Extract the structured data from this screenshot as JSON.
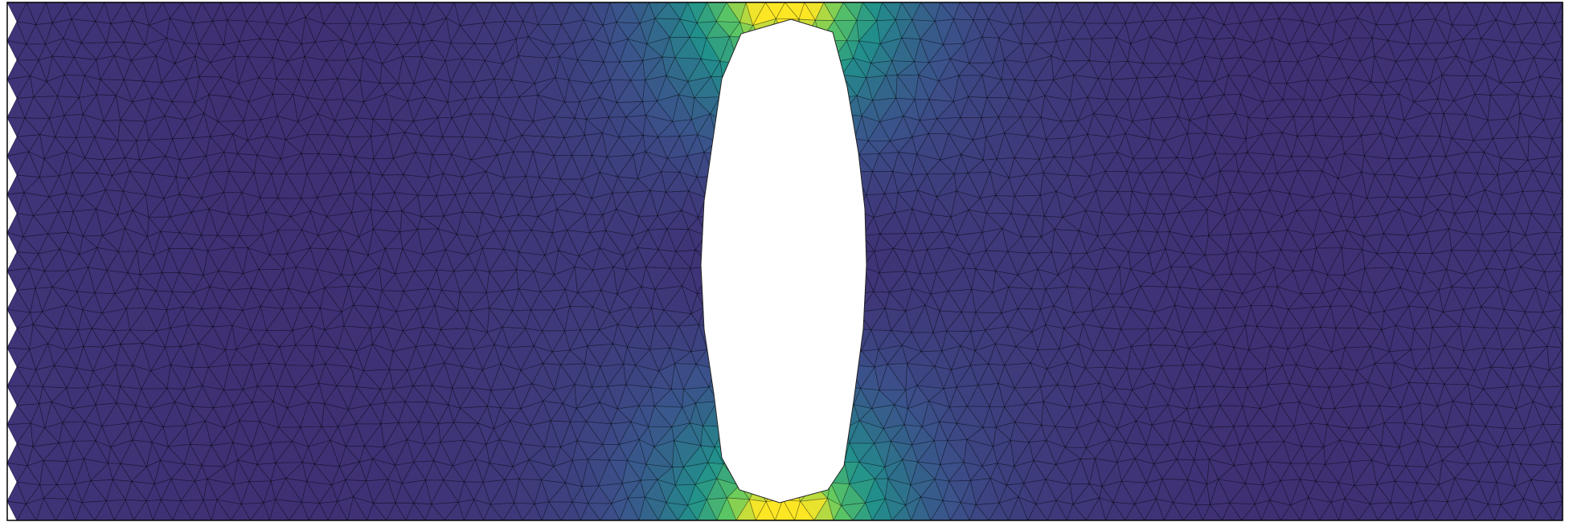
{
  "figure": {
    "kind": "finite-element mesh field plot",
    "colormap": "viridis",
    "colors": {
      "low": "#440154",
      "low_mid": "#3b528b",
      "mid": "#21918c",
      "high_mid": "#5ec962",
      "high": "#fde725",
      "background": "#ffffff",
      "edge": "#000000",
      "mesh_line": "#000000"
    },
    "field_peaks": [
      "top-of-hole",
      "bottom-of-hole"
    ],
    "hole_shape": "vertical-slot",
    "mesh_type": "triangular"
  }
}
